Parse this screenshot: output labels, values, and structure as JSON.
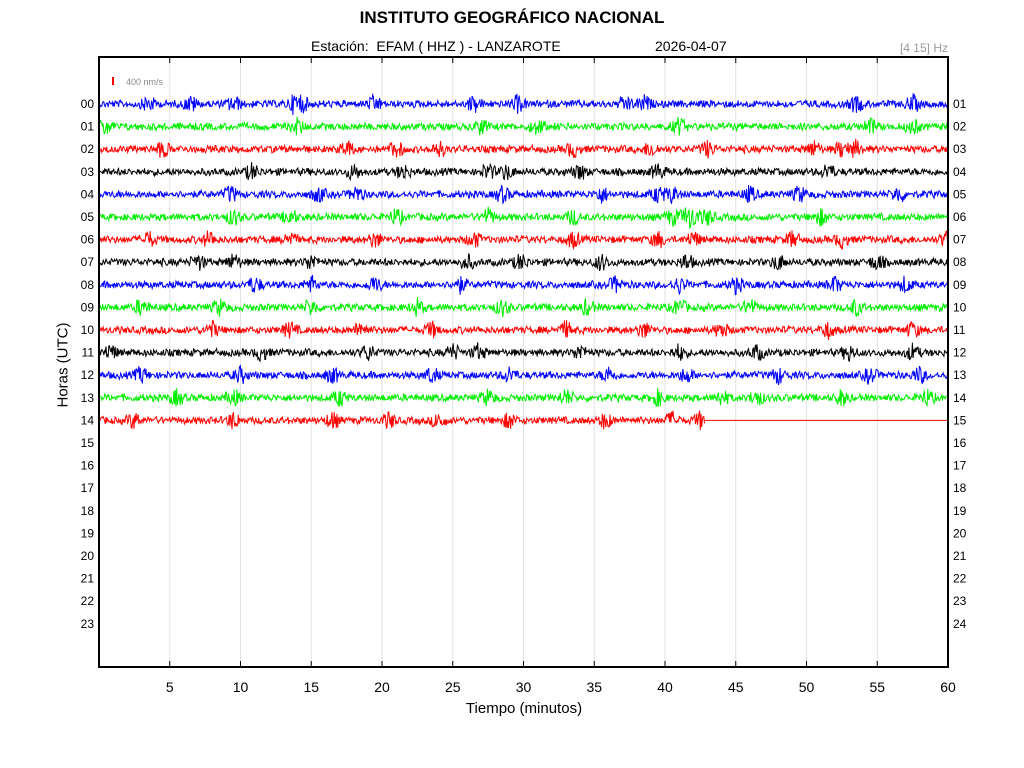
{
  "header": {
    "title": "INSTITUTO GEOGRÁFICO NACIONAL",
    "subtitle": "Estación:  EFAM ( HHZ ) - LANZAROTE",
    "date": "2026-04-07",
    "band": "[4 15] Hz"
  },
  "chart_data": {
    "type": "line",
    "title": "INSTITUTO GEOGRÁFICO NACIONAL",
    "xlabel": "Tiempo (minutos)",
    "ylabel": "Horas (UTC)",
    "xlim": [
      0,
      60
    ],
    "x_ticks": [
      5,
      10,
      15,
      20,
      25,
      30,
      35,
      40,
      45,
      50,
      55,
      60
    ],
    "left_hour_labels": [
      "00",
      "01",
      "02",
      "03",
      "04",
      "05",
      "06",
      "07",
      "08",
      "09",
      "10",
      "11",
      "12",
      "13",
      "14",
      "15",
      "16",
      "17",
      "18",
      "19",
      "20",
      "21",
      "22",
      "23"
    ],
    "right_hour_labels": [
      "01",
      "02",
      "03",
      "04",
      "05",
      "06",
      "07",
      "08",
      "09",
      "10",
      "11",
      "12",
      "13",
      "14",
      "15",
      "16",
      "17",
      "18",
      "19",
      "20",
      "21",
      "22",
      "23",
      "24"
    ],
    "scale_bar_label": "400 nm/s",
    "grid_x": true,
    "colors": [
      "#0000ff",
      "#00ee00",
      "#ff0000",
      "#000000"
    ],
    "series": [
      {
        "hour": "00",
        "color": "#0000ff",
        "minutes_recorded": 60,
        "events_min": [
          3.5,
          6.5,
          9.5,
          13.8,
          14.3,
          19.5,
          26.5,
          29.6,
          37.2,
          38.5,
          53.5,
          57.5
        ]
      },
      {
        "hour": "01",
        "color": "#00ee00",
        "minutes_recorded": 60,
        "events_min": [
          0.5,
          14.0,
          27.0,
          31.0,
          41.0,
          54.5,
          57.5
        ]
      },
      {
        "hour": "02",
        "color": "#ff0000",
        "minutes_recorded": 60,
        "events_min": [
          4.5,
          17.5,
          21.0,
          24.0,
          33.5,
          39.0,
          43.0,
          50.5,
          52.5,
          53.5
        ]
      },
      {
        "hour": "03",
        "color": "#000000",
        "minutes_recorded": 60,
        "events_min": [
          10.8,
          18.0,
          21.5,
          27.5,
          28.8,
          34.0,
          39.5,
          51.5
        ]
      },
      {
        "hour": "04",
        "color": "#0000ff",
        "minutes_recorded": 60,
        "events_min": [
          9.3,
          15.5,
          18.2,
          28.5,
          35.5,
          39.5,
          40.5,
          46.0,
          49.5,
          56.5
        ]
      },
      {
        "hour": "05",
        "color": "#00ee00",
        "minutes_recorded": 60,
        "events_min": [
          9.5,
          13.5,
          21.0,
          27.5,
          33.5,
          40.5,
          41.5,
          42.0,
          43.0,
          51.0
        ]
      },
      {
        "hour": "06",
        "color": "#ff0000",
        "minutes_recorded": 60,
        "events_min": [
          3.5,
          7.8,
          13.5,
          19.5,
          26.5,
          33.5,
          39.5,
          42.0,
          49.0,
          52.5,
          59.9
        ]
      },
      {
        "hour": "07",
        "color": "#000000",
        "minutes_recorded": 60,
        "events_min": [
          7.0,
          9.5,
          15.0,
          26.0,
          29.8,
          35.5,
          41.5,
          48.0,
          55.0
        ]
      },
      {
        "hour": "08",
        "color": "#0000ff",
        "minutes_recorded": 60,
        "events_min": [
          11.0,
          15.0,
          19.5,
          25.5,
          36.5,
          41.0,
          45.0,
          52.0,
          57.0
        ]
      },
      {
        "hour": "09",
        "color": "#00ee00",
        "minutes_recorded": 60,
        "events_min": [
          3.0,
          8.5,
          15.0,
          22.5,
          28.5,
          34.5,
          41.0,
          46.0,
          53.5
        ]
      },
      {
        "hour": "10",
        "color": "#ff0000",
        "minutes_recorded": 60,
        "events_min": [
          8.0,
          13.5,
          18.5,
          23.5,
          33.0,
          38.5,
          44.0,
          51.5,
          57.5
        ]
      },
      {
        "hour": "11",
        "color": "#000000",
        "minutes_recorded": 60,
        "events_min": [
          0.8,
          11.5,
          19.0,
          25.0,
          26.8,
          34.0,
          41.0,
          46.5,
          53.0,
          57.5
        ]
      },
      {
        "hour": "12",
        "color": "#0000ff",
        "minutes_recorded": 60,
        "events_min": [
          3.0,
          10.0,
          16.5,
          23.5,
          29.0,
          36.0,
          41.5,
          48.0,
          54.5,
          58.0
        ]
      },
      {
        "hour": "13",
        "color": "#00ee00",
        "minutes_recorded": 60,
        "events_min": [
          5.5,
          9.5,
          17.0,
          27.5,
          33.0,
          39.5,
          44.0,
          46.5,
          52.5,
          58.5
        ]
      },
      {
        "hour": "14",
        "color": "#ff0000",
        "minutes_recorded": 42.8,
        "events_min": [
          2.5,
          9.5,
          16.5,
          20.5,
          24.0,
          29.0,
          35.8,
          40.5,
          42.5
        ]
      }
    ]
  }
}
